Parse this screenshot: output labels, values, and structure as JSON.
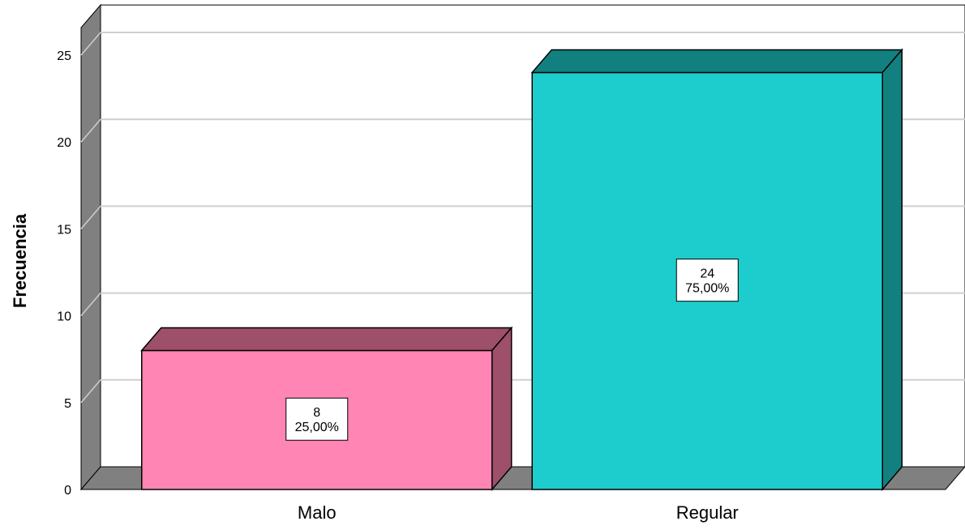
{
  "chart_data": {
    "type": "bar",
    "categories": [
      "Malo",
      "Regular"
    ],
    "values": [
      8,
      24
    ],
    "percent_labels": [
      "25,00%",
      "75,00%"
    ],
    "ylabel": "Frecuencia",
    "xlabel": "",
    "ylim": [
      0,
      27
    ],
    "y_ticks": [
      0,
      5,
      10,
      15,
      20,
      25
    ],
    "grid": true,
    "three_d": true,
    "bar_colors": [
      {
        "front": "#FF85B4",
        "top": "#9E4F6A",
        "side": "#9E4F6A"
      },
      {
        "front": "#1DCDCD",
        "top": "#138080",
        "side": "#138080"
      }
    ],
    "wall_color": "#808080"
  }
}
